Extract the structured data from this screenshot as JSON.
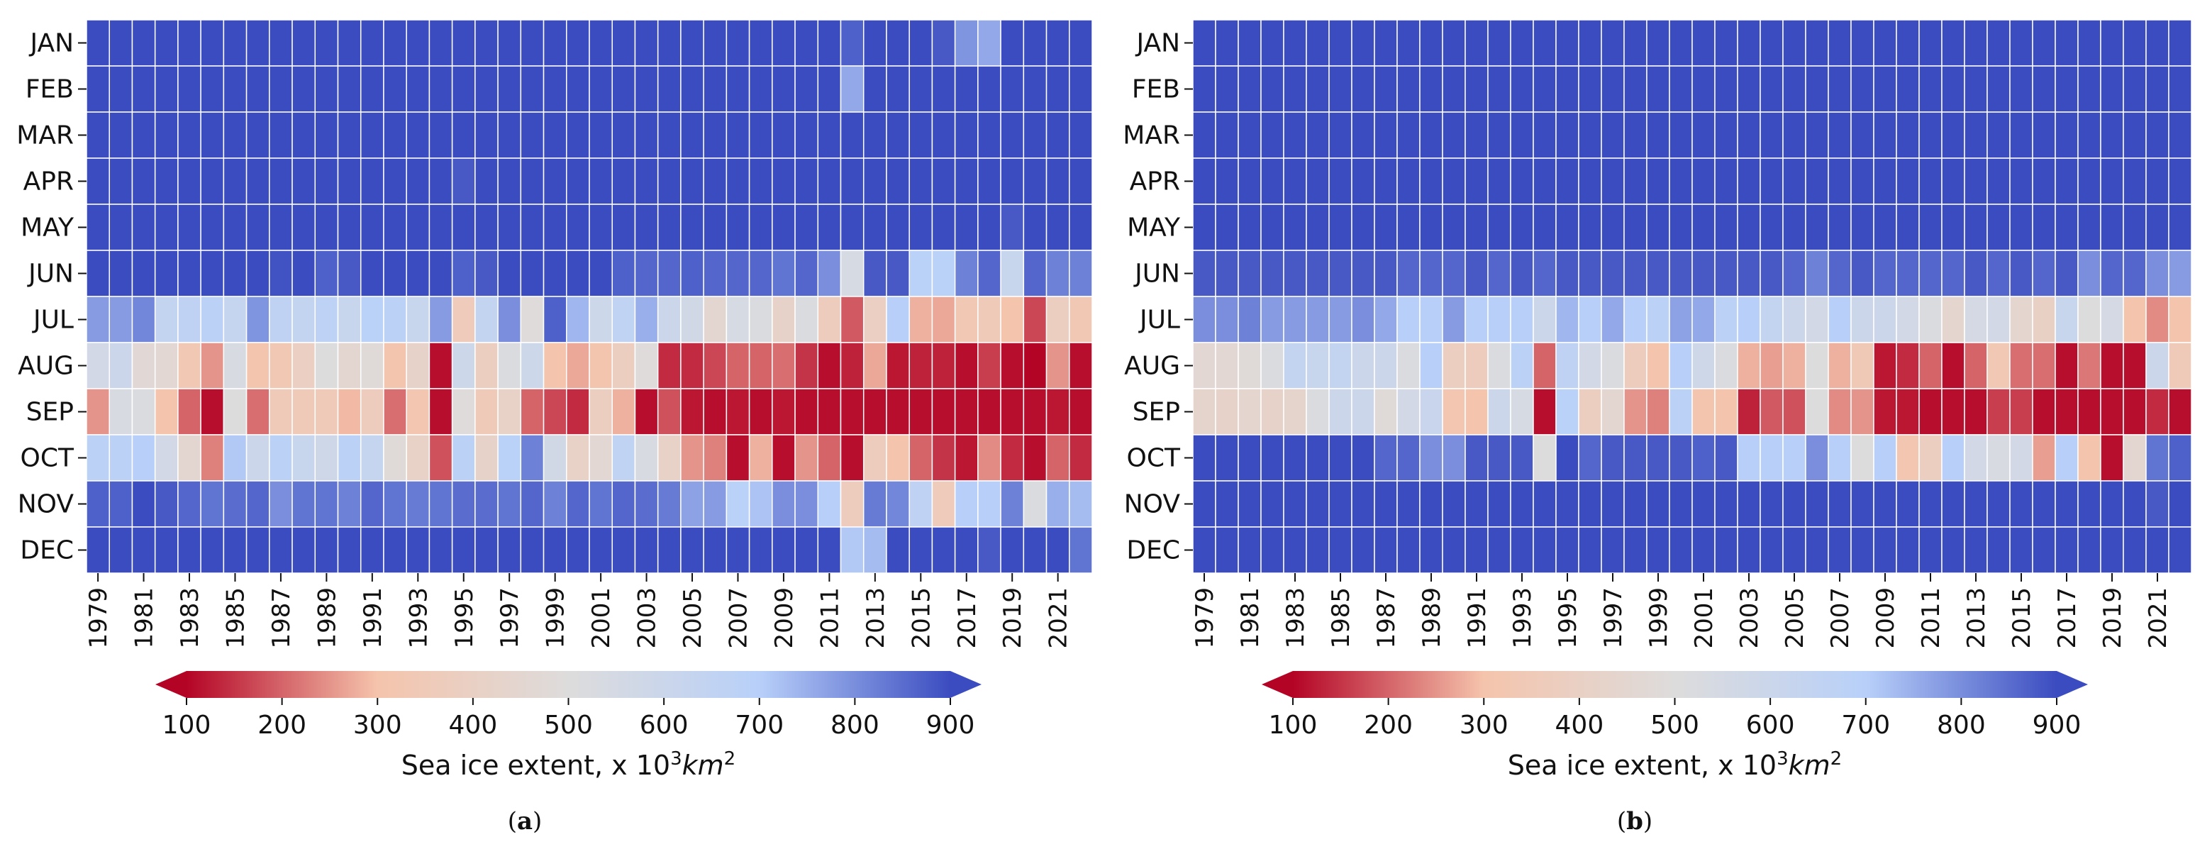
{
  "colorbar": {
    "ticks": [
      "100",
      "200",
      "300",
      "400",
      "500",
      "600",
      "700",
      "800",
      "900"
    ],
    "min": 100,
    "max": 900,
    "label_prefix": "Sea ice extent, x 10",
    "label_superscript": "3",
    "label_unit": "km",
    "label_unit_superscript": "2",
    "colors": [
      "#b40426",
      "#f5c4ac",
      "#dddcdc",
      "#b8d0f9",
      "#3b4cc0"
    ]
  },
  "chart_data": [
    {
      "type": "heatmap",
      "panel_label": "a",
      "title": "",
      "xlabel": "",
      "ylabel": "",
      "months": [
        "JAN",
        "FEB",
        "MAR",
        "APR",
        "MAY",
        "JUN",
        "JUL",
        "AUG",
        "SEP",
        "OCT",
        "NOV",
        "DEC"
      ],
      "year_start": 1979,
      "year_end": 2022,
      "x_tick_labels": [
        "1979",
        "1981",
        "1983",
        "1985",
        "1987",
        "1989",
        "1991",
        "1993",
        "1995",
        "1997",
        "1999",
        "2001",
        "2003",
        "2005",
        "2007",
        "2009",
        "2011",
        "2013",
        "2015",
        "2017",
        "2019",
        "2021"
      ],
      "values": [
        [
          900,
          900,
          900,
          900,
          900,
          900,
          900,
          900,
          900,
          900,
          900,
          900,
          900,
          900,
          900,
          900,
          900,
          900,
          900,
          900,
          900,
          900,
          900,
          900,
          900,
          900,
          900,
          900,
          900,
          900,
          900,
          900,
          900,
          870,
          900,
          900,
          900,
          880,
          790,
          760,
          900,
          900,
          900,
          900
        ],
        [
          900,
          900,
          900,
          900,
          900,
          900,
          900,
          900,
          900,
          900,
          900,
          900,
          900,
          900,
          900,
          900,
          900,
          900,
          900,
          900,
          900,
          900,
          900,
          900,
          900,
          900,
          900,
          900,
          900,
          900,
          900,
          900,
          900,
          760,
          900,
          900,
          900,
          900,
          900,
          900,
          900,
          900,
          900,
          900
        ],
        [
          900,
          900,
          900,
          900,
          900,
          900,
          900,
          900,
          900,
          900,
          900,
          900,
          900,
          900,
          900,
          900,
          900,
          900,
          900,
          900,
          900,
          900,
          900,
          900,
          900,
          900,
          900,
          900,
          900,
          900,
          900,
          900,
          900,
          900,
          900,
          900,
          900,
          900,
          900,
          900,
          900,
          900,
          900,
          900
        ],
        [
          900,
          900,
          900,
          900,
          900,
          900,
          900,
          900,
          900,
          900,
          900,
          900,
          900,
          900,
          900,
          900,
          880,
          900,
          900,
          900,
          900,
          900,
          900,
          900,
          900,
          900,
          900,
          900,
          900,
          900,
          900,
          900,
          900,
          900,
          900,
          900,
          900,
          900,
          900,
          900,
          900,
          900,
          900,
          900
        ],
        [
          900,
          900,
          900,
          900,
          900,
          900,
          900,
          900,
          900,
          900,
          900,
          900,
          900,
          900,
          900,
          900,
          900,
          900,
          900,
          900,
          900,
          900,
          900,
          900,
          900,
          900,
          900,
          900,
          900,
          900,
          900,
          900,
          900,
          900,
          900,
          900,
          900,
          900,
          900,
          900,
          880,
          900,
          900,
          900
        ],
        [
          900,
          900,
          900,
          900,
          900,
          900,
          900,
          900,
          890,
          900,
          870,
          880,
          900,
          900,
          900,
          900,
          870,
          880,
          900,
          900,
          900,
          900,
          900,
          870,
          860,
          860,
          870,
          860,
          860,
          860,
          840,
          860,
          800,
          540,
          880,
          880,
          690,
          690,
          820,
          860,
          620,
          860,
          820,
          820
        ],
        [
          780,
          780,
          810,
          640,
          660,
          680,
          630,
          790,
          660,
          640,
          670,
          620,
          690,
          680,
          620,
          780,
          360,
          640,
          800,
          490,
          870,
          740,
          590,
          650,
          750,
          600,
          570,
          450,
          540,
          520,
          420,
          520,
          370,
          190,
          390,
          700,
          280,
          270,
          330,
          350,
          300,
          170,
          380,
          330
        ],
        [
          560,
          600,
          470,
          460,
          330,
          250,
          530,
          310,
          330,
          390,
          500,
          450,
          480,
          310,
          420,
          110,
          590,
          380,
          520,
          590,
          300,
          270,
          310,
          380,
          490,
          140,
          140,
          170,
          200,
          200,
          210,
          150,
          110,
          130,
          270,
          120,
          130,
          130,
          110,
          160,
          110,
          100,
          250,
          110
        ],
        [
          250,
          530,
          520,
          300,
          200,
          110,
          500,
          210,
          350,
          350,
          350,
          290,
          370,
          210,
          320,
          110,
          490,
          350,
          410,
          200,
          170,
          140,
          380,
          280,
          110,
          180,
          120,
          110,
          120,
          110,
          120,
          110,
          110,
          110,
          110,
          110,
          110,
          110,
          110,
          110,
          110,
          110,
          120,
          110
        ],
        [
          680,
          680,
          700,
          560,
          450,
          230,
          710,
          600,
          680,
          620,
          580,
          680,
          630,
          480,
          410,
          180,
          680,
          420,
          690,
          820,
          570,
          410,
          460,
          650,
          530,
          410,
          250,
          230,
          110,
          280,
          110,
          250,
          200,
          110,
          370,
          300,
          200,
          150,
          120,
          240,
          140,
          110,
          200,
          140
        ],
        [
          870,
          870,
          900,
          880,
          860,
          840,
          850,
          860,
          800,
          840,
          840,
          820,
          860,
          840,
          830,
          840,
          850,
          850,
          840,
          860,
          820,
          860,
          840,
          860,
          850,
          830,
          770,
          780,
          690,
          720,
          800,
          800,
          700,
          370,
          830,
          810,
          660,
          360,
          700,
          700,
          820,
          520,
          750,
          730
        ],
        [
          900,
          900,
          900,
          900,
          900,
          900,
          900,
          900,
          900,
          900,
          900,
          900,
          900,
          900,
          900,
          900,
          900,
          900,
          900,
          900,
          900,
          900,
          900,
          900,
          900,
          900,
          900,
          900,
          900,
          900,
          900,
          900,
          900,
          710,
          730,
          900,
          900,
          900,
          900,
          880,
          900,
          900,
          900,
          840
        ]
      ]
    },
    {
      "type": "heatmap",
      "panel_label": "b",
      "title": "",
      "xlabel": "",
      "ylabel": "",
      "months": [
        "JAN",
        "FEB",
        "MAR",
        "APR",
        "MAY",
        "JUN",
        "JUL",
        "AUG",
        "SEP",
        "OCT",
        "NOV",
        "DEC"
      ],
      "year_start": 1979,
      "year_end": 2022,
      "x_tick_labels": [
        "1979",
        "1981",
        "1983",
        "1985",
        "1987",
        "1989",
        "1991",
        "1993",
        "1995",
        "1997",
        "1999",
        "2001",
        "2003",
        "2005",
        "2007",
        "2009",
        "2011",
        "2013",
        "2015",
        "2017",
        "2019",
        "2021"
      ],
      "values": [
        [
          900,
          900,
          900,
          900,
          900,
          900,
          900,
          900,
          900,
          900,
          900,
          900,
          900,
          900,
          900,
          900,
          900,
          900,
          900,
          900,
          900,
          900,
          900,
          900,
          900,
          900,
          900,
          900,
          900,
          900,
          900,
          900,
          900,
          900,
          900,
          900,
          900,
          900,
          900,
          900,
          900,
          900,
          900,
          900
        ],
        [
          900,
          900,
          900,
          900,
          900,
          900,
          900,
          900,
          900,
          900,
          900,
          900,
          900,
          900,
          900,
          900,
          900,
          900,
          900,
          900,
          900,
          900,
          900,
          900,
          900,
          900,
          900,
          900,
          900,
          900,
          900,
          900,
          900,
          900,
          900,
          900,
          900,
          900,
          900,
          900,
          900,
          900,
          900,
          900
        ],
        [
          900,
          900,
          900,
          900,
          900,
          900,
          900,
          900,
          900,
          900,
          900,
          900,
          900,
          900,
          900,
          900,
          900,
          900,
          900,
          900,
          900,
          900,
          900,
          900,
          900,
          900,
          900,
          900,
          900,
          900,
          900,
          900,
          900,
          900,
          900,
          900,
          900,
          900,
          900,
          900,
          900,
          900,
          900,
          900
        ],
        [
          900,
          900,
          900,
          900,
          900,
          900,
          900,
          900,
          900,
          900,
          900,
          900,
          900,
          900,
          900,
          900,
          900,
          900,
          900,
          900,
          900,
          900,
          900,
          900,
          900,
          900,
          900,
          900,
          900,
          900,
          900,
          900,
          900,
          900,
          900,
          900,
          900,
          900,
          900,
          900,
          900,
          900,
          900,
          900
        ],
        [
          900,
          900,
          900,
          900,
          900,
          900,
          900,
          900,
          900,
          900,
          900,
          900,
          900,
          900,
          900,
          900,
          900,
          900,
          900,
          900,
          900,
          900,
          900,
          900,
          900,
          900,
          900,
          900,
          900,
          900,
          900,
          900,
          900,
          900,
          900,
          900,
          900,
          900,
          900,
          900,
          900,
          900,
          900,
          900
        ],
        [
          880,
          880,
          880,
          880,
          880,
          880,
          880,
          880,
          880,
          860,
          860,
          860,
          880,
          860,
          880,
          860,
          880,
          880,
          880,
          880,
          880,
          880,
          880,
          880,
          880,
          880,
          860,
          820,
          860,
          880,
          860,
          860,
          860,
          860,
          880,
          860,
          880,
          860,
          880,
          800,
          860,
          860,
          800,
          780
        ],
        [
          800,
          800,
          820,
          780,
          780,
          780,
          780,
          800,
          760,
          700,
          700,
          780,
          700,
          700,
          700,
          600,
          740,
          700,
          760,
          700,
          680,
          770,
          760,
          680,
          700,
          640,
          600,
          560,
          700,
          600,
          600,
          560,
          520,
          440,
          550,
          560,
          440,
          400,
          620,
          500,
          550,
          300,
          240,
          300
        ],
        [
          460,
          460,
          480,
          520,
          640,
          620,
          640,
          600,
          600,
          520,
          700,
          380,
          370,
          520,
          680,
          200,
          660,
          560,
          520,
          370,
          300,
          700,
          580,
          520,
          280,
          260,
          280,
          500,
          280,
          340,
          120,
          140,
          200,
          110,
          200,
          330,
          210,
          210,
          110,
          220,
          110,
          110,
          600,
          350
        ],
        [
          430,
          420,
          440,
          420,
          430,
          520,
          600,
          600,
          480,
          560,
          610,
          320,
          300,
          600,
          540,
          110,
          690,
          380,
          450,
          250,
          230,
          680,
          310,
          300,
          130,
          190,
          180,
          500,
          240,
          250,
          120,
          120,
          110,
          110,
          110,
          160,
          160,
          110,
          110,
          110,
          110,
          110,
          140,
          110
        ],
        [
          900,
          900,
          900,
          900,
          900,
          900,
          900,
          900,
          860,
          860,
          800,
          800,
          880,
          880,
          880,
          500,
          900,
          860,
          880,
          880,
          880,
          880,
          870,
          880,
          700,
          700,
          700,
          800,
          700,
          500,
          700,
          320,
          380,
          700,
          560,
          530,
          560,
          260,
          700,
          300,
          110,
          450,
          840,
          870
        ],
        [
          900,
          900,
          900,
          900,
          900,
          900,
          900,
          900,
          900,
          900,
          900,
          900,
          900,
          900,
          900,
          900,
          900,
          900,
          900,
          900,
          900,
          900,
          900,
          900,
          900,
          900,
          900,
          900,
          900,
          900,
          900,
          900,
          900,
          900,
          900,
          900,
          900,
          900,
          900,
          900,
          900,
          900,
          880,
          900
        ],
        [
          900,
          900,
          900,
          900,
          900,
          900,
          900,
          900,
          900,
          900,
          900,
          900,
          900,
          900,
          900,
          900,
          900,
          900,
          900,
          900,
          900,
          900,
          900,
          900,
          900,
          900,
          900,
          900,
          900,
          900,
          900,
          900,
          900,
          900,
          900,
          900,
          900,
          900,
          900,
          900,
          900,
          900,
          900,
          900
        ]
      ]
    }
  ]
}
